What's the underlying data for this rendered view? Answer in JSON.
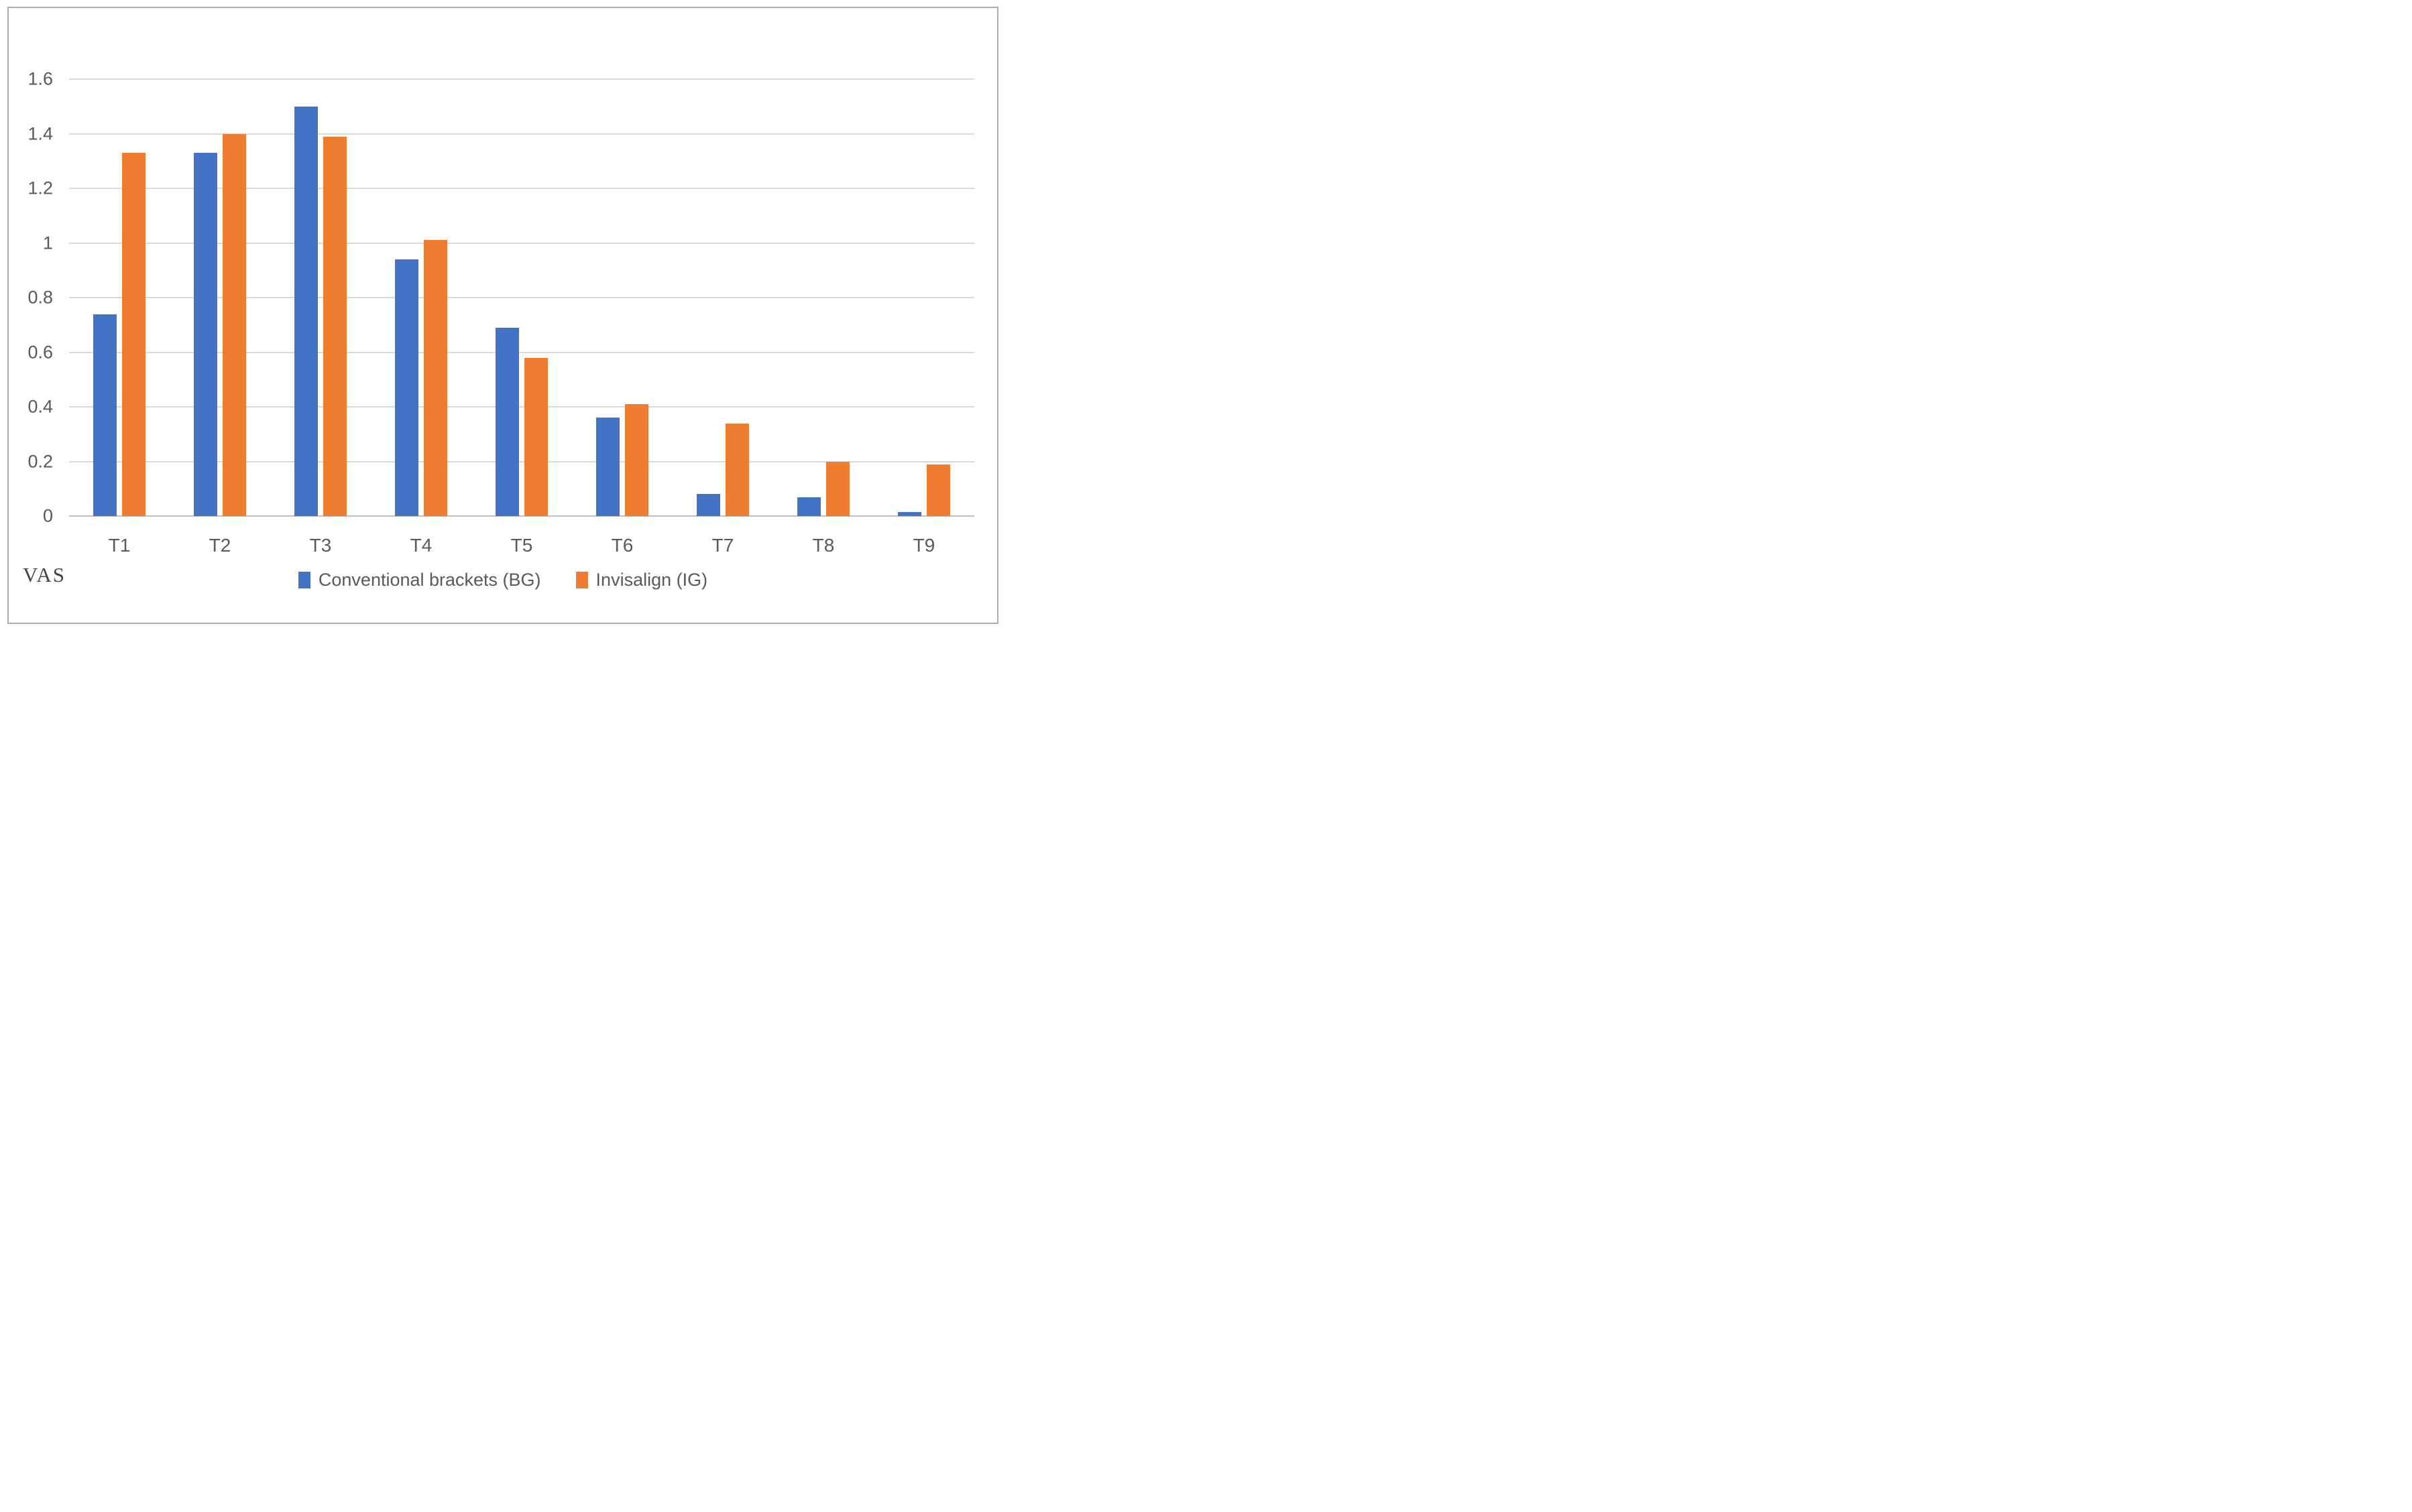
{
  "figure": {
    "y_axis_title": "VAS"
  },
  "colors": {
    "bg_series": "#4472C4",
    "ig_series": "#ED7D31",
    "gridline": "#D9D9D9",
    "axis_line": "#BFBFBF",
    "tick_label": "#595959",
    "frame_border": "#ABABAB"
  },
  "chart_data": {
    "type": "bar",
    "title": "",
    "xlabel": "",
    "ylabel": "VAS",
    "categories": [
      "T1",
      "T2",
      "T3",
      "T4",
      "T5",
      "T6",
      "T7",
      "T8",
      "T9"
    ],
    "series": [
      {
        "name": "Conventional brackets (BG)",
        "color": "#4472C4",
        "values": [
          0.74,
          1.33,
          1.5,
          0.94,
          0.69,
          0.36,
          0.08,
          0.07,
          0.015
        ]
      },
      {
        "name": "Invisalign (IG)",
        "color": "#ED7D31",
        "values": [
          1.33,
          1.4,
          1.39,
          1.01,
          0.58,
          0.41,
          0.34,
          0.2,
          0.19
        ]
      }
    ],
    "ylim": [
      0,
      1.6
    ],
    "ytick_interval": 0.2,
    "ytick_labels": [
      "0",
      "0.2",
      "0.4",
      "0.6",
      "0.8",
      "1",
      "1.2",
      "1.4",
      "1.6"
    ],
    "grid": true,
    "legend_position": "bottom-center"
  }
}
